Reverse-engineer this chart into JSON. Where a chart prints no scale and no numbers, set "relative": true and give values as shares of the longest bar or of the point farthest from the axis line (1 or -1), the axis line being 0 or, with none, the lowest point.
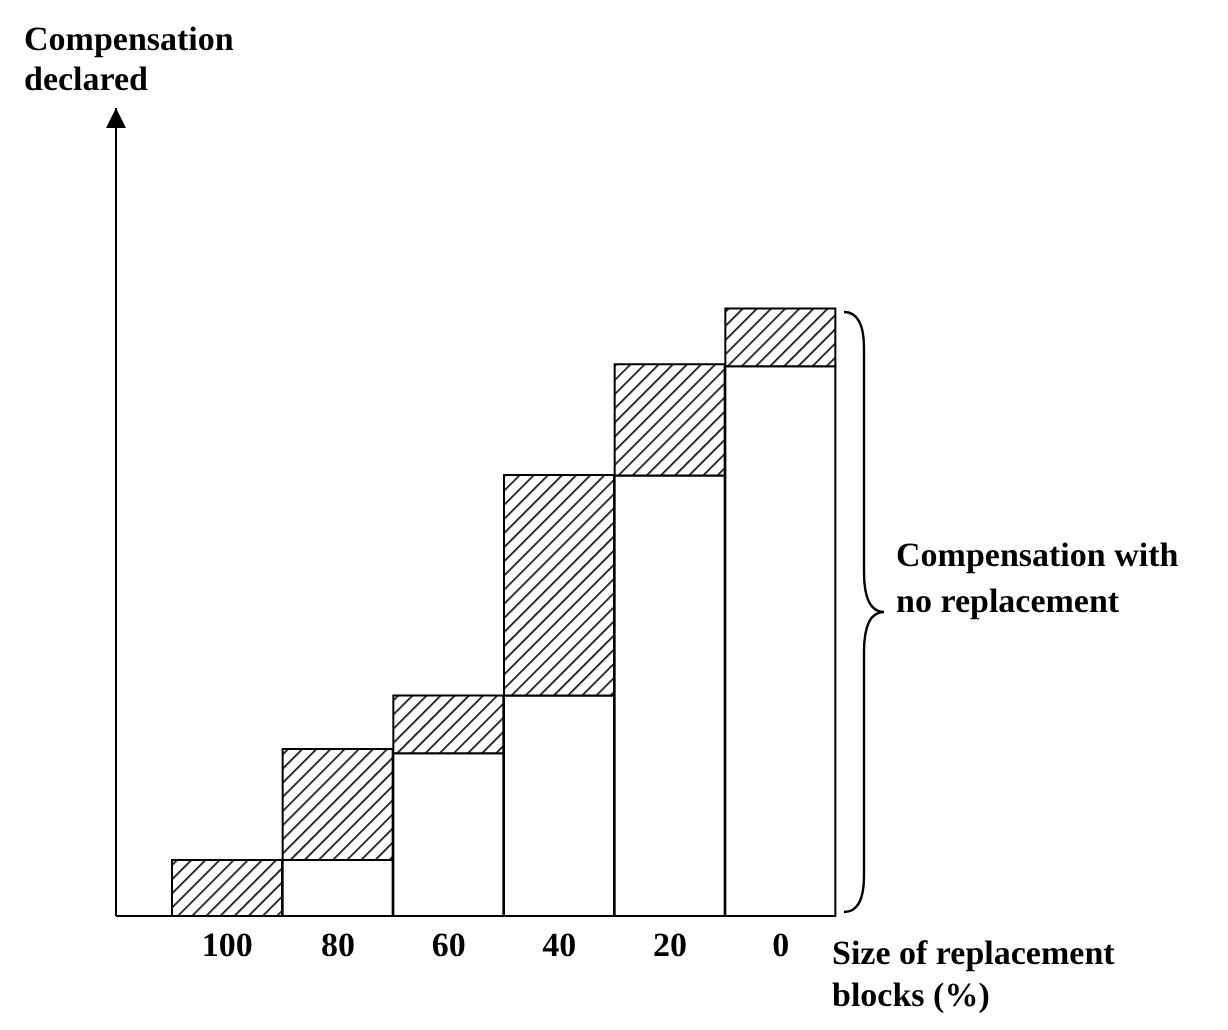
{
  "chart_data": {
    "type": "bar",
    "stacked": true,
    "relative": true,
    "xlabel": "Size of replacement blocks (%)",
    "categories": [
      "100",
      "80",
      "60",
      "40",
      "20",
      "0"
    ],
    "series": [
      {
        "color": "#ffffff",
        "values": [
          0,
          0.092,
          0.268,
          0.363,
          0.725,
          0.905
        ]
      },
      {
        "color": "#000000",
        "values": [
          0.092,
          0.183,
          0.095,
          0.363,
          0.183,
          0.095
        ]
      }
    ],
    "annotations": [
      "Compensation declared",
      "Compensation with no replacement"
    ],
    "grid": false,
    "legend": false
  }
}
